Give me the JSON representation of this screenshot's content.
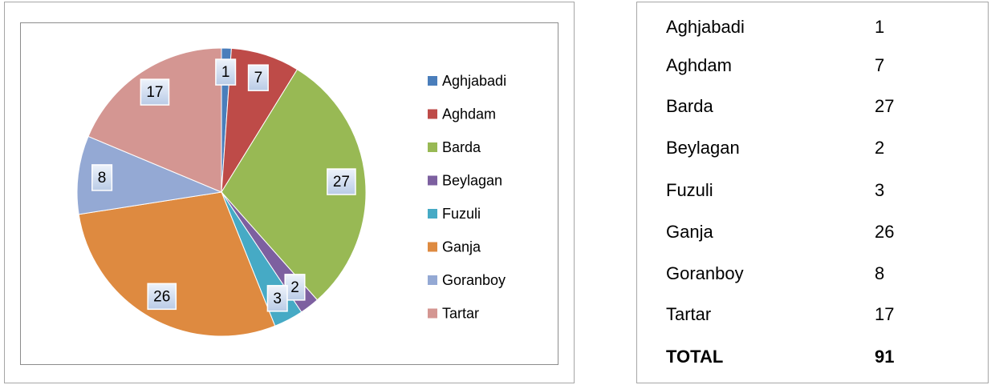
{
  "chart_data": {
    "type": "pie",
    "categories": [
      "Aghjabadi",
      "Aghdam",
      "Barda",
      "Beylagan",
      "Fuzuli",
      "Ganja",
      "Goranboy",
      "Tartar"
    ],
    "values": [
      1,
      7,
      27,
      2,
      3,
      26,
      8,
      17
    ],
    "colors": [
      "#4a7ebb",
      "#be4b48",
      "#98b954",
      "#7d60a0",
      "#46aac5",
      "#de8a40",
      "#94a9d4",
      "#d49692"
    ],
    "legend": "right"
  },
  "table": {
    "rows": [
      [
        "Aghjabadi",
        1
      ],
      [
        "Aghdam",
        7
      ],
      [
        "Barda",
        27
      ],
      [
        "Beylagan",
        2
      ],
      [
        "Fuzuli",
        3
      ],
      [
        "Ganja",
        26
      ],
      [
        "Goranboy",
        8
      ],
      [
        "Tartar",
        17
      ]
    ],
    "total": [
      "TOTAL",
      91
    ]
  }
}
